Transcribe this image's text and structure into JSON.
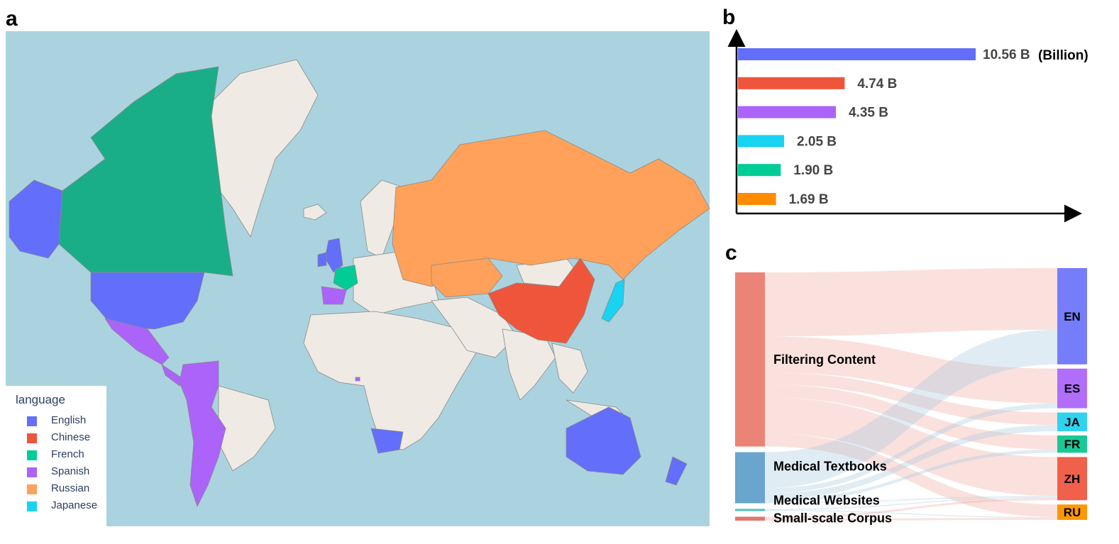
{
  "panels": {
    "a": "a",
    "b": "b",
    "c": "c"
  },
  "legend": {
    "title": "language",
    "items": [
      {
        "label": "English",
        "color": "#636efa"
      },
      {
        "label": "Chinese",
        "color": "#ef553b"
      },
      {
        "label": "French",
        "color": "#00cc96"
      },
      {
        "label": "Spanish",
        "color": "#ab63fa"
      },
      {
        "label": "Russian",
        "color": "#ffa15a"
      },
      {
        "label": "Japanese",
        "color": "#19d3f3"
      }
    ]
  },
  "chart_data": [
    {
      "type": "map",
      "title": "",
      "series_name": "language",
      "countries": [
        {
          "name": "United States",
          "language": "English"
        },
        {
          "name": "Alaska",
          "language": "English"
        },
        {
          "name": "United Kingdom",
          "language": "English"
        },
        {
          "name": "Ireland",
          "language": "English"
        },
        {
          "name": "Australia",
          "language": "English"
        },
        {
          "name": "New Zealand",
          "language": "English"
        },
        {
          "name": "South Africa",
          "language": "English"
        },
        {
          "name": "Canada",
          "language": "French"
        },
        {
          "name": "France",
          "language": "French"
        },
        {
          "name": "Spain",
          "language": "Spanish"
        },
        {
          "name": "Mexico",
          "language": "Spanish"
        },
        {
          "name": "Central America",
          "language": "Spanish"
        },
        {
          "name": "Colombia",
          "language": "Spanish"
        },
        {
          "name": "Peru",
          "language": "Spanish"
        },
        {
          "name": "Chile",
          "language": "Spanish"
        },
        {
          "name": "Argentina",
          "language": "Spanish"
        },
        {
          "name": "Equatorial Guinea",
          "language": "Spanish"
        },
        {
          "name": "Russia",
          "language": "Russian"
        },
        {
          "name": "Kazakhstan",
          "language": "Russian"
        },
        {
          "name": "Belarus",
          "language": "Russian"
        },
        {
          "name": "China",
          "language": "Chinese"
        },
        {
          "name": "Japan",
          "language": "Japanese"
        }
      ]
    },
    {
      "type": "bar",
      "orientation": "horizontal",
      "unit_label": "(Billion)",
      "categories": [
        "English",
        "Chinese",
        "Spanish",
        "Japanese",
        "French",
        "Russian"
      ],
      "values": [
        10.56,
        4.74,
        4.35,
        2.05,
        1.9,
        1.69
      ],
      "labels": [
        "10.56 B",
        "4.74 B",
        "4.35 B",
        "2.05 B",
        "1.90 B",
        "1.69 B"
      ],
      "colors": [
        "#636efa",
        "#ef553b",
        "#ab63fa",
        "#19d3f3",
        "#00cc96",
        "#ff8c00"
      ],
      "xlim": [
        0,
        10.56
      ]
    },
    {
      "type": "sankey",
      "sources": [
        {
          "name": "Filtering Content",
          "value": 17.4,
          "color": "#ec8377"
        },
        {
          "name": "Medical Textbooks",
          "value": 5.1,
          "color": "#69a5cd"
        },
        {
          "name": "Medical Websites",
          "value": 0.2,
          "color": "#4fc1b8"
        },
        {
          "name": "Small-scale Corpus",
          "value": 0.4,
          "color": "#de7a73"
        }
      ],
      "targets": [
        {
          "name": "EN",
          "value": 10.56,
          "color": "#767dfa"
        },
        {
          "name": "ES",
          "value": 4.35,
          "color": "#b06efa"
        },
        {
          "name": "JA",
          "value": 2.05,
          "color": "#2fd3f0"
        },
        {
          "name": "FR",
          "value": 1.9,
          "color": "#19c995"
        },
        {
          "name": "ZH",
          "value": 4.74,
          "color": "#f0604a"
        },
        {
          "name": "RU",
          "value": 1.69,
          "color": "#ff9800"
        }
      ],
      "links": [
        {
          "source": "Filtering Content",
          "target": "EN",
          "value": 6.4
        },
        {
          "source": "Filtering Content",
          "target": "ES",
          "value": 3.6
        },
        {
          "source": "Filtering Content",
          "target": "JA",
          "value": 1.2
        },
        {
          "source": "Filtering Content",
          "target": "FR",
          "value": 1.3
        },
        {
          "source": "Filtering Content",
          "target": "ZH",
          "value": 3.6
        },
        {
          "source": "Filtering Content",
          "target": "RU",
          "value": 1.3
        },
        {
          "source": "Medical Textbooks",
          "target": "EN",
          "value": 3.6
        },
        {
          "source": "Medical Textbooks",
          "target": "ES",
          "value": 0.5
        },
        {
          "source": "Medical Textbooks",
          "target": "JA",
          "value": 0.6
        },
        {
          "source": "Medical Textbooks",
          "target": "FR",
          "value": 0.3
        },
        {
          "source": "Medical Textbooks",
          "target": "ZH",
          "value": 0.1
        },
        {
          "source": "Medical Websites",
          "target": "ZH",
          "value": 0.1
        },
        {
          "source": "Medical Websites",
          "target": "RU",
          "value": 0.1
        },
        {
          "source": "Small-scale Corpus",
          "target": "ZH",
          "value": 0.2
        },
        {
          "source": "Small-scale Corpus",
          "target": "RU",
          "value": 0.2
        }
      ]
    }
  ]
}
